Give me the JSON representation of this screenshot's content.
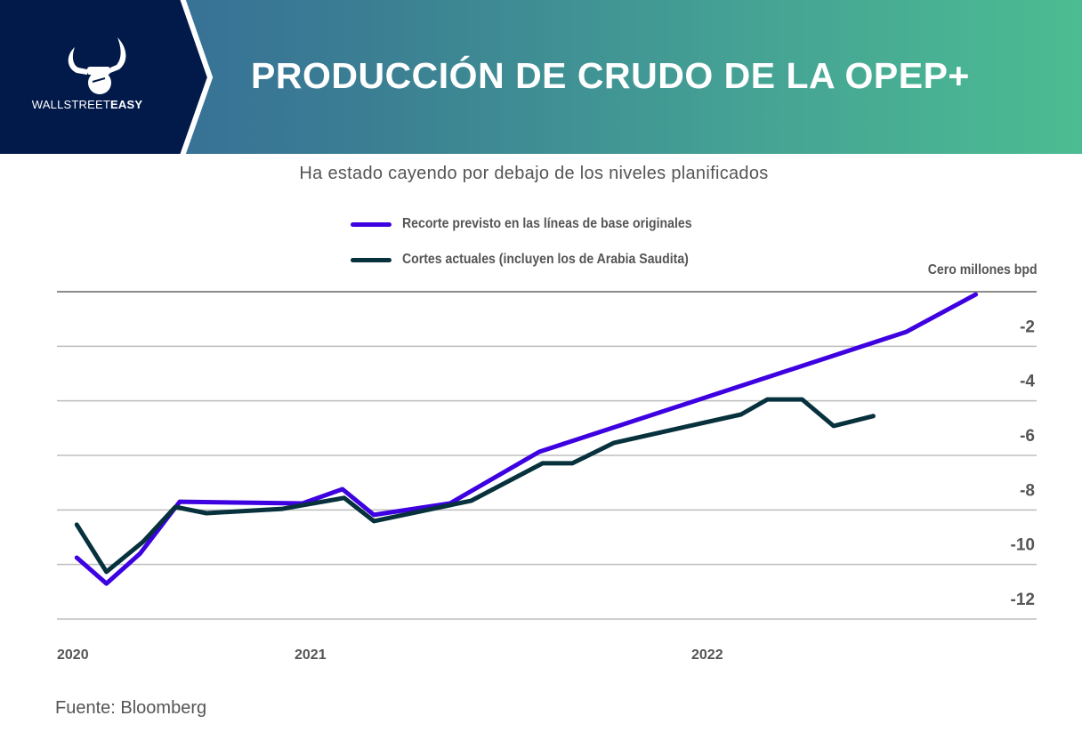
{
  "header": {
    "brand": {
      "name_light": "WALLSTREET",
      "name_bold": "EASY",
      "logo_icon": "bull-horns-fist-icon"
    },
    "title": "PRODUCCIÓN DE CRUDO DE LA OPEP+",
    "colors": {
      "brand_panel": "#021a4a",
      "gradient_start": "#34659a",
      "gradient_end": "#4cbc92"
    }
  },
  "footer": {
    "source": "Fuente: Bloomberg"
  },
  "chart_data": {
    "type": "line",
    "title": "PRODUCCIÓN DE CRUDO DE LA OPEP+",
    "subtitle": "Ha estado cayendo por debajo de los niveles planificados",
    "xlabel": "",
    "ylabel": "Cero millones bpd",
    "x_unit": "months since Jan 2020 (estimated)",
    "x_ticks": [
      {
        "label": "2020",
        "x": 0
      },
      {
        "label": "2021",
        "x": 12
      },
      {
        "label": "2022",
        "x": 24
      }
    ],
    "y_ticks": [
      {
        "value": 0,
        "label": ""
      },
      {
        "value": -2,
        "label": "-2"
      },
      {
        "value": -4,
        "label": "-4"
      },
      {
        "value": -6,
        "label": "-6"
      },
      {
        "value": -8,
        "label": "-8"
      },
      {
        "value": -10,
        "label": "-10"
      },
      {
        "value": -12,
        "label": "-12"
      }
    ],
    "ylim": [
      -12,
      0
    ],
    "grid": true,
    "legend_position": "top-center",
    "series": [
      {
        "name": "Recorte previsto en las líneas de base originales",
        "color": "#3d00e0",
        "points": [
          [
            1.0,
            -9.75
          ],
          [
            2.5,
            -10.7
          ],
          [
            4.2,
            -9.6
          ],
          [
            6.2,
            -7.7
          ],
          [
            12.24,
            -7.76
          ],
          [
            13.45,
            -7.24
          ],
          [
            14.4,
            -8.18
          ],
          [
            16.7,
            -7.76
          ],
          [
            19.4,
            -5.87
          ],
          [
            30.5,
            -1.47
          ],
          [
            32.6,
            -0.1
          ]
        ]
      },
      {
        "name": "Cortes actuales (incluyen los de Arabia Saudita)",
        "color": "#06313d",
        "points": [
          [
            1.0,
            -8.54
          ],
          [
            2.5,
            -10.27
          ],
          [
            4.36,
            -9.16
          ],
          [
            5.98,
            -7.89
          ],
          [
            7.55,
            -8.12
          ],
          [
            11.4,
            -7.96
          ],
          [
            12.24,
            -7.83
          ],
          [
            13.5,
            -7.56
          ],
          [
            14.4,
            -8.41
          ],
          [
            17.35,
            -7.66
          ],
          [
            19.5,
            -6.29
          ],
          [
            20.4,
            -6.29
          ],
          [
            21.66,
            -5.54
          ],
          [
            23.8,
            -4.96
          ],
          [
            25.5,
            -4.5
          ],
          [
            26.3,
            -3.95
          ],
          [
            27.35,
            -3.95
          ],
          [
            28.3,
            -4.92
          ],
          [
            29.5,
            -4.56
          ]
        ]
      }
    ]
  }
}
